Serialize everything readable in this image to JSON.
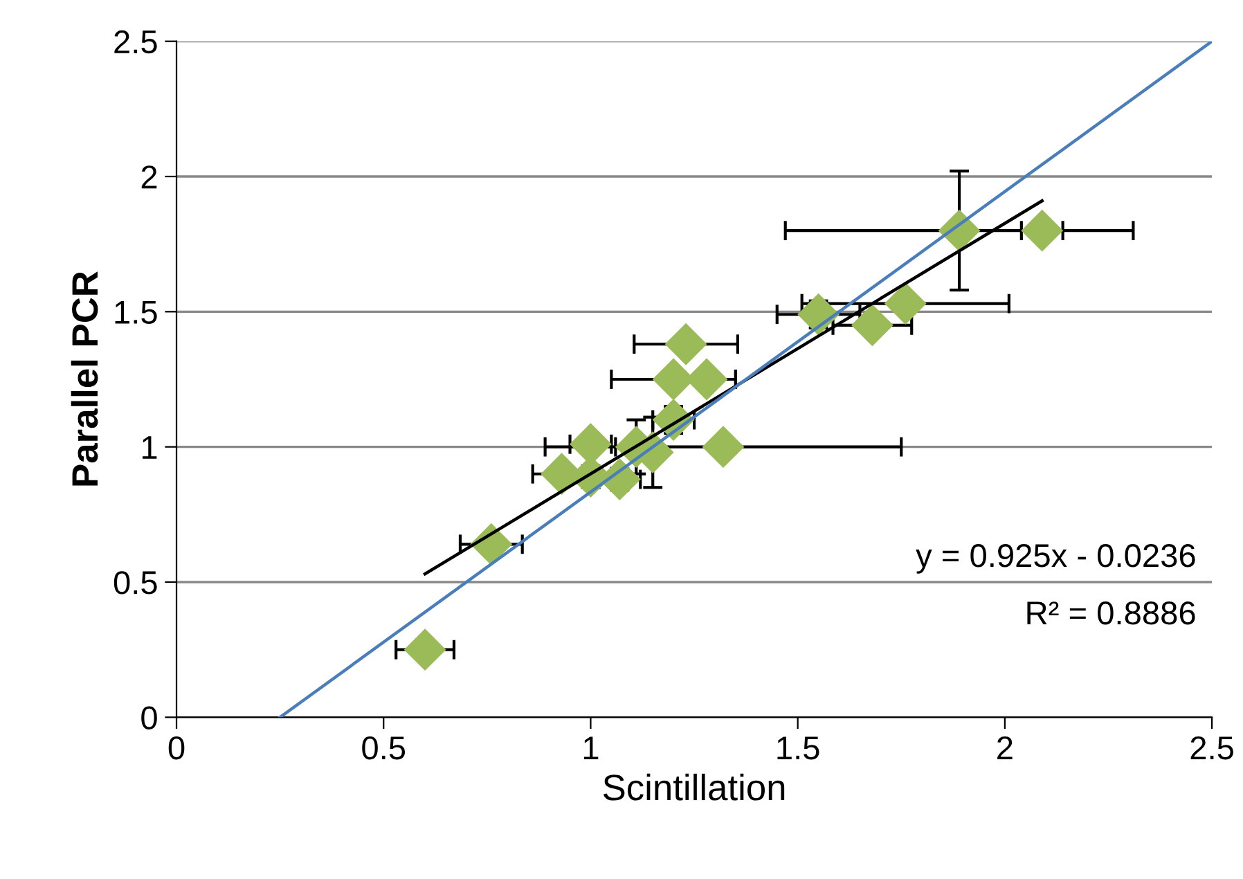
{
  "chart_data": {
    "type": "scatter",
    "xlabel": "Scintillation",
    "ylabel": "Parallel PCR",
    "xlim": [
      0,
      2.5
    ],
    "ylim": [
      0,
      2.5
    ],
    "xticks": [
      0,
      0.5,
      1,
      1.5,
      2,
      2.5
    ],
    "yticks": [
      0,
      0.5,
      1,
      1.5,
      2,
      2.5
    ],
    "grid": "y",
    "series": [
      {
        "marker": "diamond",
        "color": "#9bbb59",
        "x": [
          0.6,
          0.76,
          0.93,
          1.0,
          1.0,
          1.07,
          1.11,
          1.15,
          1.2,
          1.2,
          1.23,
          1.28,
          1.32,
          1.55,
          1.68,
          1.76,
          1.89,
          2.09
        ],
        "values": [
          0.25,
          0.64,
          0.9,
          1.01,
          0.89,
          0.88,
          1.0,
          0.98,
          1.1,
          1.25,
          1.38,
          1.25,
          1.0,
          1.49,
          1.45,
          1.53,
          1.8,
          1.8
        ],
        "xerrors": [
          0.07,
          0.075,
          0.07,
          0.05,
          0.05,
          0.05,
          0.05,
          null,
          0.05,
          0.15,
          0.125,
          0.07,
          0.43,
          0.1,
          0.095,
          0.25,
          0.42,
          0.05
        ],
        "errors": [
          null,
          0.03,
          null,
          null,
          0.04,
          0.04,
          0.1,
          0.13,
          0.05,
          null,
          null,
          null,
          null,
          0.05,
          null,
          null,
          0.22,
          null
        ]
      },
      {
        "type": "line",
        "color": "#000000",
        "x": [
          0.6,
          2.09
        ],
        "values": [
          0.53,
          1.91
        ],
        "marker": "none"
      },
      {
        "type": "line",
        "color": "#4a7ebb",
        "x": [
          0.25,
          2.5
        ],
        "values": [
          0,
          2.5
        ],
        "marker": "none"
      }
    ],
    "annotations": [
      "y = 0.925x - 0.0236",
      "R² = 0.8886"
    ]
  }
}
